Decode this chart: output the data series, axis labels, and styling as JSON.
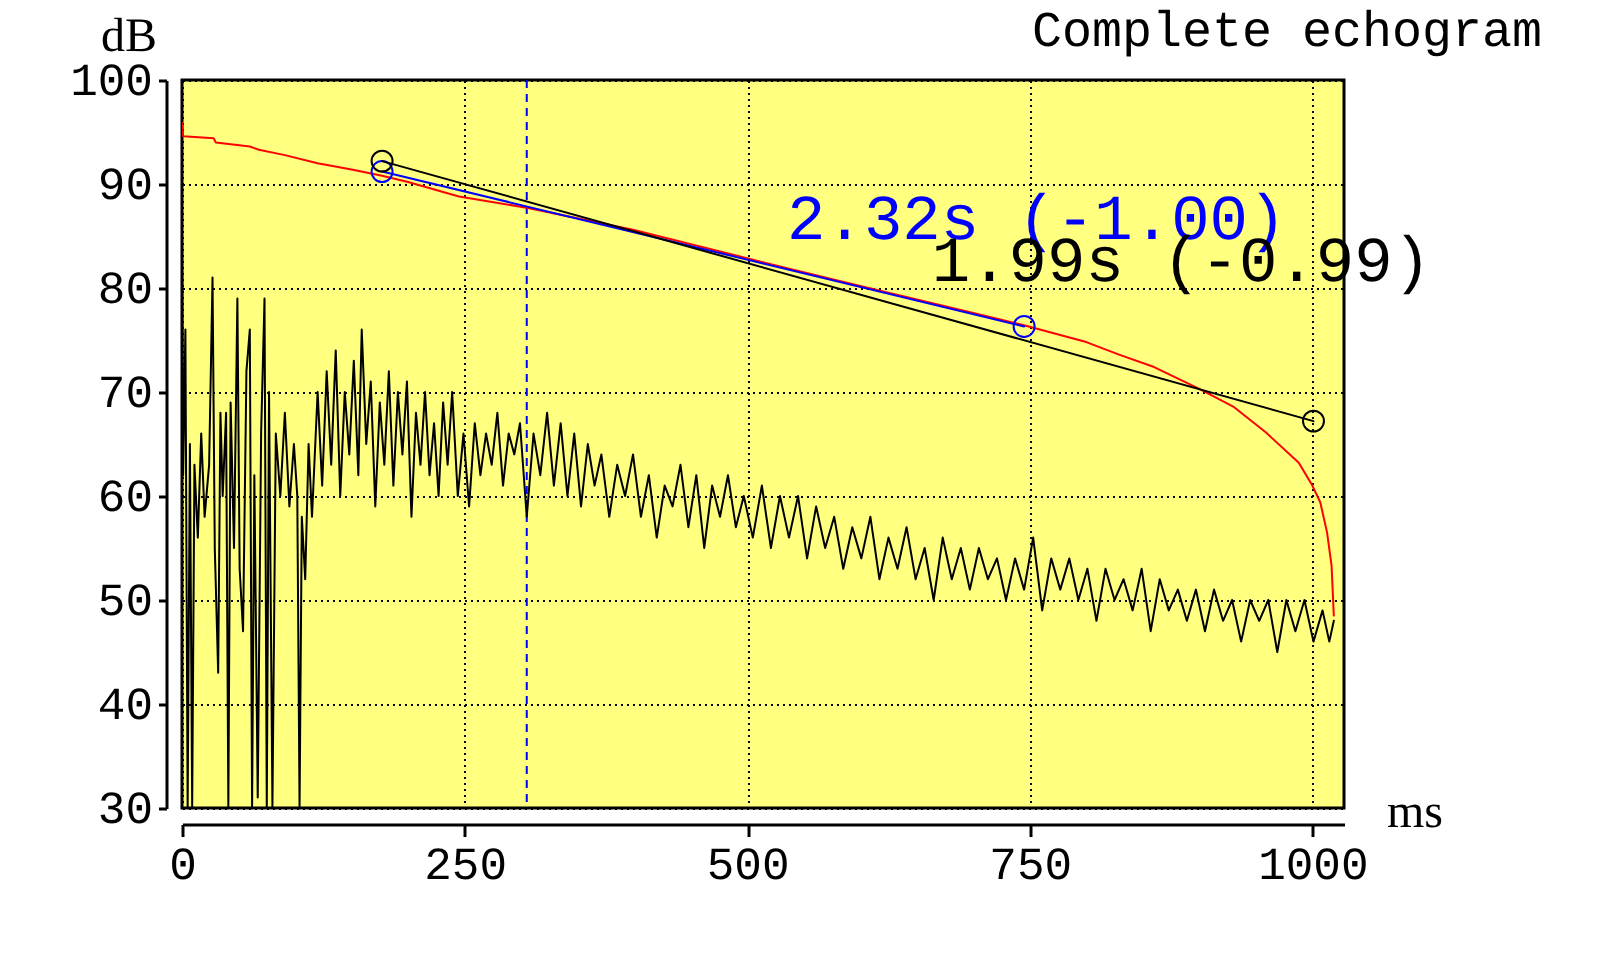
{
  "chart_data": {
    "type": "line",
    "title": "Complete echogram",
    "xlabel": "ms",
    "ylabel": "dB",
    "xlim": [
      0,
      1028
    ],
    "xticks": [
      0,
      250,
      500,
      750,
      1000
    ],
    "ylim": [
      30,
      100
    ],
    "yticks": [
      30,
      40,
      50,
      60,
      70,
      80,
      90,
      100
    ],
    "grid": true,
    "ref_lines": [
      {
        "axis": "x",
        "value": 305,
        "color": "#0000ff",
        "line_style": "dashed"
      }
    ],
    "series": [
      {
        "color": "#000000",
        "x": [
          0,
          1,
          3,
          5,
          7,
          9,
          11,
          14,
          17,
          20,
          24,
          27,
          29,
          32,
          34,
          36,
          39,
          41,
          43,
          46,
          49,
          51,
          54,
          57,
          60,
          62,
          64,
          67,
          70,
          73,
          75,
          77,
          80,
          83,
          87,
          91,
          95,
          99,
          102,
          104,
          106,
          109,
          112,
          115,
          120,
          124,
          128,
          132,
          136,
          140,
          144,
          148,
          152,
          156,
          159,
          163,
          167,
          171,
          175,
          179,
          183,
          187,
          191,
          195,
          199,
          203,
          207,
          211,
          215,
          219,
          223,
          227,
          231,
          235,
          239,
          244,
          249,
          254,
          259,
          264,
          269,
          274,
          279,
          284,
          289,
          294,
          299,
          305,
          311,
          317,
          323,
          329,
          335,
          341,
          347,
          353,
          359,
          365,
          371,
          378,
          385,
          392,
          399,
          406,
          413,
          420,
          427,
          434,
          441,
          448,
          455,
          462,
          469,
          476,
          483,
          490,
          497,
          505,
          513,
          521,
          529,
          537,
          545,
          553,
          561,
          569,
          577,
          585,
          593,
          601,
          609,
          617,
          625,
          633,
          641,
          649,
          657,
          665,
          673,
          681,
          689,
          697,
          705,
          713,
          721,
          729,
          737,
          745,
          753,
          761,
          769,
          777,
          785,
          793,
          801,
          809,
          817,
          825,
          833,
          841,
          849,
          857,
          865,
          873,
          881,
          889,
          897,
          905,
          913,
          921,
          929,
          937,
          945,
          953,
          961,
          969,
          977,
          985,
          993,
          1001,
          1009,
          1015,
          1019
        ],
        "values": [
          85,
          62,
          76,
          30,
          65,
          30,
          63,
          56,
          66,
          58,
          63,
          81,
          55,
          43,
          68,
          60,
          68,
          30,
          69,
          55,
          79,
          53,
          47,
          72,
          76,
          30,
          62,
          31,
          66,
          79,
          30,
          70,
          30,
          66,
          60,
          68,
          59,
          65,
          60,
          30,
          58,
          52,
          65,
          58,
          70,
          61,
          72,
          63,
          74,
          60,
          70,
          64,
          73,
          62,
          76,
          65,
          71,
          59,
          69,
          63,
          72,
          61,
          70,
          64,
          71,
          58,
          68,
          63,
          70,
          62,
          67,
          60,
          69,
          63,
          70,
          60,
          66,
          59,
          67,
          62,
          66,
          63,
          68,
          61,
          66,
          64,
          67,
          58,
          66,
          62,
          68,
          61,
          67,
          60,
          66,
          59,
          65,
          61,
          64,
          58,
          63,
          60,
          64,
          58,
          62,
          56,
          61,
          59,
          63,
          57,
          62,
          55,
          61,
          58,
          62,
          57,
          60,
          56,
          61,
          55,
          60,
          56,
          60,
          54,
          59,
          55,
          58,
          53,
          57,
          54,
          58,
          52,
          56,
          53,
          57,
          52,
          55,
          50,
          56,
          52,
          55,
          51,
          55,
          52,
          54,
          50,
          54,
          51,
          56,
          49,
          54,
          51,
          54,
          50,
          53,
          48,
          53,
          50,
          52,
          49,
          53,
          47,
          52,
          49,
          51,
          48,
          51,
          47,
          51,
          48,
          50,
          46,
          50,
          48,
          50,
          45,
          50,
          47,
          50,
          46,
          49,
          46,
          48
        ]
      },
      {
        "color": "#ff0000",
        "x": [
          0,
          1,
          28,
          30,
          60,
          68,
          90,
          120,
          150,
          177,
          200,
          245,
          306,
          399,
          528,
          600,
          700,
          749,
          800,
          829,
          860,
          900,
          930,
          959,
          988,
          1000,
          1007,
          1013,
          1017,
          1019
        ],
        "values": [
          95.9,
          94.6,
          94.4,
          94.0,
          93.6,
          93.3,
          92.8,
          92.0,
          91.4,
          90.8,
          90.2,
          88.8,
          87.7,
          85.6,
          82.1,
          80.2,
          77.6,
          76.3,
          74.8,
          73.6,
          72.4,
          70.3,
          68.6,
          66.1,
          63.2,
          61.0,
          59.4,
          56.5,
          53.3,
          48.5
        ]
      },
      {
        "name": "2.32s (-1.00)",
        "color": "#0000ff",
        "marker": "circle",
        "x": [
          177,
          745
        ],
        "values": [
          91.2,
          76.3
        ]
      },
      {
        "name": "1.99s (-0.99)",
        "color": "#000000",
        "marker": "circle",
        "x": [
          177,
          1001
        ],
        "values": [
          92.2,
          67.2
        ]
      }
    ]
  }
}
